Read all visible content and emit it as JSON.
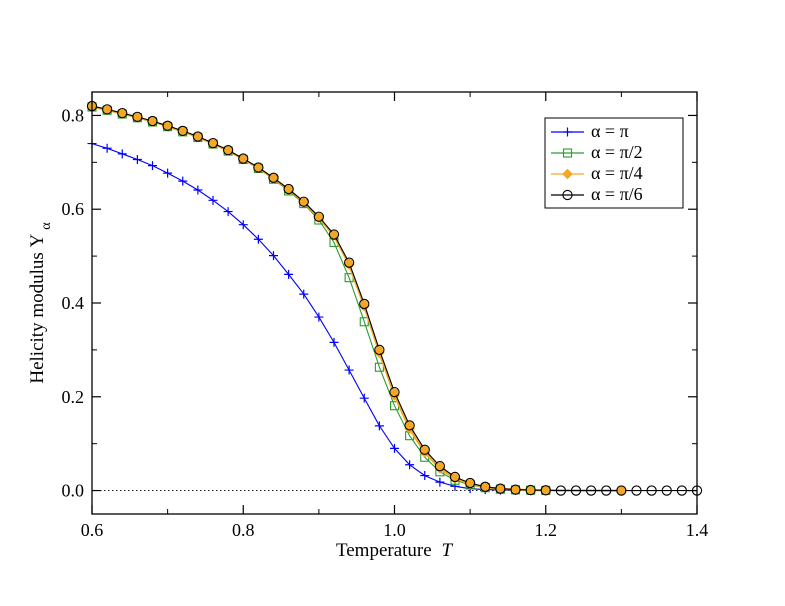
{
  "chart_data": {
    "type": "line",
    "title": "",
    "xlabel": "Temperature",
    "xlabel_var": "T",
    "ylabel": "Helicity modulus  Υ",
    "ylabel_sub": "α",
    "xlim": [
      0.6,
      1.4
    ],
    "ylim": [
      -0.05,
      0.85
    ],
    "x_ticks": [
      "0.6",
      "0.8",
      "1.0",
      "1.2",
      "1.4"
    ],
    "y_ticks": [
      "0.0",
      "0.2",
      "0.4",
      "0.6",
      "0.8"
    ],
    "reference_line_y": 0.0,
    "legend_position": "top-right",
    "series": [
      {
        "name": "α = π",
        "color": "#0000ff",
        "marker": "plus",
        "x": [
          0.6,
          0.62,
          0.64,
          0.66,
          0.68,
          0.7,
          0.72,
          0.74,
          0.76,
          0.78,
          0.8,
          0.82,
          0.84,
          0.86,
          0.88,
          0.9,
          0.92,
          0.94,
          0.96,
          0.98,
          1.0,
          1.02,
          1.04,
          1.06,
          1.08,
          1.1,
          1.12,
          1.14,
          1.16
        ],
        "values": [
          0.74,
          0.73,
          0.718,
          0.706,
          0.693,
          0.677,
          0.66,
          0.641,
          0.619,
          0.595,
          0.567,
          0.536,
          0.501,
          0.461,
          0.419,
          0.37,
          0.316,
          0.257,
          0.197,
          0.138,
          0.09,
          0.055,
          0.032,
          0.018,
          0.009,
          0.004,
          0.002,
          0.001,
          0.0005
        ]
      },
      {
        "name": "α = π/2",
        "color": "#2a9d2a",
        "marker": "square-open",
        "x": [
          0.6,
          0.62,
          0.64,
          0.66,
          0.68,
          0.7,
          0.72,
          0.74,
          0.76,
          0.78,
          0.8,
          0.82,
          0.84,
          0.86,
          0.88,
          0.9,
          0.92,
          0.94,
          0.96,
          0.98,
          1.0,
          1.02,
          1.04,
          1.06,
          1.08,
          1.1,
          1.12,
          1.14,
          1.16,
          1.18,
          1.2
        ],
        "values": [
          0.818,
          0.811,
          0.803,
          0.795,
          0.786,
          0.776,
          0.765,
          0.753,
          0.739,
          0.724,
          0.706,
          0.687,
          0.664,
          0.639,
          0.612,
          0.577,
          0.529,
          0.454,
          0.36,
          0.263,
          0.181,
          0.117,
          0.071,
          0.04,
          0.022,
          0.012,
          0.006,
          0.003,
          0.0015,
          0.0007,
          0.0003
        ]
      },
      {
        "name": "α = π/4",
        "color": "#f5a623",
        "marker": "diamond-filled",
        "x": [
          0.6,
          0.62,
          0.64,
          0.66,
          0.68,
          0.7,
          0.72,
          0.74,
          0.76,
          0.78,
          0.8,
          0.82,
          0.84,
          0.86,
          0.88,
          0.9,
          0.92,
          0.94,
          0.96,
          0.98,
          1.0,
          1.02,
          1.04,
          1.06,
          1.08,
          1.1,
          1.12,
          1.14,
          1.16,
          1.18,
          1.2,
          1.3
        ],
        "values": [
          0.819,
          0.812,
          0.804,
          0.796,
          0.787,
          0.777,
          0.766,
          0.754,
          0.74,
          0.725,
          0.707,
          0.688,
          0.666,
          0.642,
          0.615,
          0.582,
          0.544,
          0.482,
          0.393,
          0.294,
          0.203,
          0.132,
          0.081,
          0.047,
          0.026,
          0.014,
          0.007,
          0.004,
          0.002,
          0.001,
          0.0005,
          0.0
        ]
      },
      {
        "name": "α = π/6",
        "color": "#000000",
        "marker": "circle-open",
        "x": [
          0.6,
          0.62,
          0.64,
          0.66,
          0.68,
          0.7,
          0.72,
          0.74,
          0.76,
          0.78,
          0.8,
          0.82,
          0.84,
          0.86,
          0.88,
          0.9,
          0.92,
          0.94,
          0.96,
          0.98,
          1.0,
          1.02,
          1.04,
          1.06,
          1.08,
          1.1,
          1.12,
          1.14,
          1.16,
          1.18,
          1.2,
          1.22,
          1.24,
          1.26,
          1.28,
          1.3,
          1.32,
          1.34,
          1.36,
          1.38,
          1.4
        ],
        "values": [
          0.82,
          0.813,
          0.805,
          0.797,
          0.788,
          0.778,
          0.767,
          0.755,
          0.741,
          0.726,
          0.708,
          0.689,
          0.667,
          0.643,
          0.616,
          0.584,
          0.546,
          0.486,
          0.398,
          0.3,
          0.21,
          0.139,
          0.087,
          0.052,
          0.029,
          0.016,
          0.008,
          0.004,
          0.002,
          0.001,
          0.0005,
          0.0,
          0.0,
          0.0,
          0.0,
          0.0,
          0.0,
          0.0,
          0.0,
          0.0,
          0.0
        ]
      }
    ]
  }
}
